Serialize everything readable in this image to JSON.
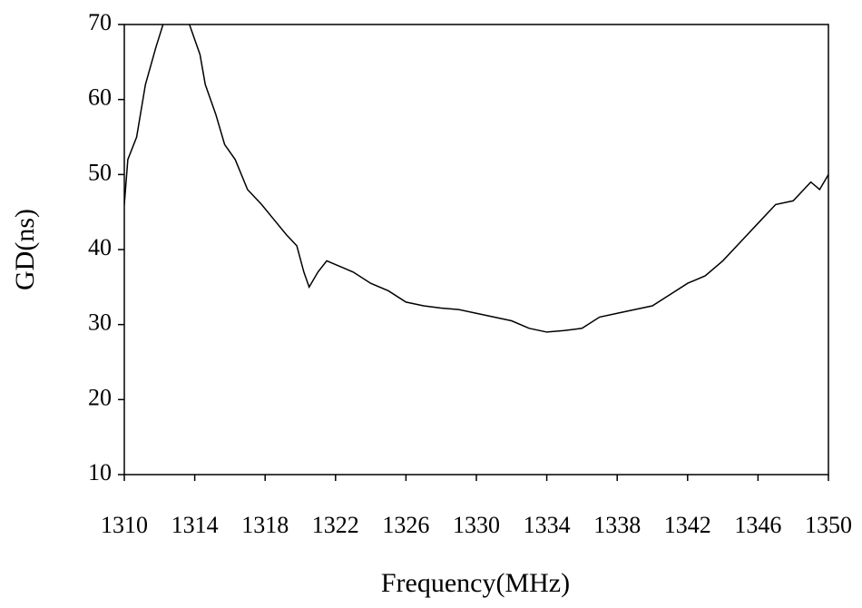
{
  "chart_data": {
    "type": "line",
    "x_label": "Frequency(MHz)",
    "y_label": "GD(ns)",
    "x": [
      1310,
      1310.2,
      1310.7,
      1311.2,
      1311.8,
      1312.2,
      1313,
      1313.7,
      1314.3,
      1314.6,
      1315.2,
      1315.7,
      1316.3,
      1317,
      1317.8,
      1318.5,
      1319.2,
      1319.8,
      1320.2,
      1320.5,
      1321,
      1321.5,
      1322,
      1323,
      1324,
      1325,
      1326,
      1327,
      1328,
      1329,
      1330,
      1331,
      1332,
      1333,
      1334,
      1335,
      1336,
      1337,
      1338,
      1339,
      1340,
      1341,
      1342,
      1343,
      1344,
      1345,
      1346,
      1347,
      1348,
      1349,
      1349.5,
      1350
    ],
    "values": [
      46,
      52,
      55,
      62,
      67,
      70,
      74,
      70,
      66,
      62,
      58,
      54,
      52,
      48,
      46,
      44,
      42,
      40.5,
      37,
      35,
      37,
      38.5,
      38,
      37,
      35.5,
      34.5,
      33,
      32.5,
      32.2,
      32,
      31.5,
      31,
      30.5,
      29.5,
      29,
      29.2,
      29.5,
      31,
      31.5,
      32,
      32.5,
      34,
      35.5,
      36.5,
      38.5,
      41,
      43.5,
      46,
      46.5,
      49,
      48,
      50
    ],
    "color": "#000000",
    "xlim": [
      1310,
      1350
    ],
    "xticks": [
      1310,
      1314,
      1318,
      1322,
      1326,
      1330,
      1334,
      1338,
      1342,
      1346,
      1350
    ],
    "ylim": [
      10,
      70
    ],
    "yticks": [
      10,
      20,
      30,
      40,
      50,
      60,
      70
    ],
    "grid": false
  }
}
